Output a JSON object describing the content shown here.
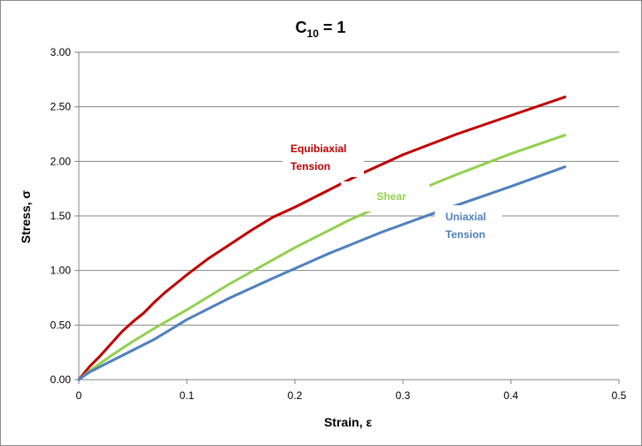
{
  "chart_data": {
    "type": "line",
    "title": {
      "main": "C",
      "subscript": "10",
      "suffix": " = 1"
    },
    "xlabel": "Strain, ε",
    "ylabel": "Stress, σ",
    "xlim": [
      0,
      0.5
    ],
    "ylim": [
      0,
      3.0
    ],
    "xticks": [
      0,
      0.1,
      0.2,
      0.3,
      0.4,
      0.5
    ],
    "xtick_labels": [
      "0",
      "0.1",
      "0.2",
      "0.3",
      "0.4",
      "0.5"
    ],
    "yticks": [
      0,
      0.5,
      1.0,
      1.5,
      2.0,
      2.5,
      3.0
    ],
    "ytick_labels": [
      "0.00",
      "0.50",
      "1.00",
      "1.50",
      "2.00",
      "2.50",
      "3.00"
    ],
    "grid": {
      "horizontal": true,
      "vertical": false
    },
    "legend": "none",
    "series": [
      {
        "key": "equibiaxial",
        "name_lines": [
          "Equibiaxial",
          "Tension"
        ],
        "color": "#c00000",
        "x": [
          0,
          0.01,
          0.02,
          0.03,
          0.04,
          0.05,
          0.06,
          0.07,
          0.08,
          0.09,
          0.1,
          0.12,
          0.14,
          0.16,
          0.18,
          0.2,
          0.23,
          0.26,
          0.3,
          0.35,
          0.4,
          0.45
        ],
        "y": [
          0,
          0.12,
          0.22,
          0.33,
          0.44,
          0.53,
          0.61,
          0.71,
          0.8,
          0.88,
          0.96,
          1.11,
          1.24,
          1.37,
          1.49,
          1.58,
          1.73,
          1.88,
          2.06,
          2.25,
          2.42,
          2.59
        ]
      },
      {
        "key": "shear",
        "name_lines": [
          "Shear"
        ],
        "color": "#92d050",
        "x": [
          0,
          0.01,
          0.02,
          0.03,
          0.05,
          0.07,
          0.1,
          0.14,
          0.2,
          0.25,
          0.3,
          0.35,
          0.4,
          0.45
        ],
        "y": [
          0,
          0.08,
          0.15,
          0.22,
          0.35,
          0.47,
          0.64,
          0.88,
          1.21,
          1.46,
          1.68,
          1.88,
          2.07,
          2.24
        ]
      },
      {
        "key": "uniaxial",
        "name_lines": [
          "Uniaxial",
          "Tension"
        ],
        "color": "#4f81bd",
        "x": [
          0,
          0.01,
          0.02,
          0.04,
          0.07,
          0.1,
          0.14,
          0.18,
          0.23,
          0.28,
          0.33,
          0.4,
          0.45
        ],
        "y": [
          0,
          0.07,
          0.12,
          0.22,
          0.37,
          0.55,
          0.75,
          0.93,
          1.15,
          1.35,
          1.53,
          1.77,
          1.95
        ]
      }
    ]
  }
}
